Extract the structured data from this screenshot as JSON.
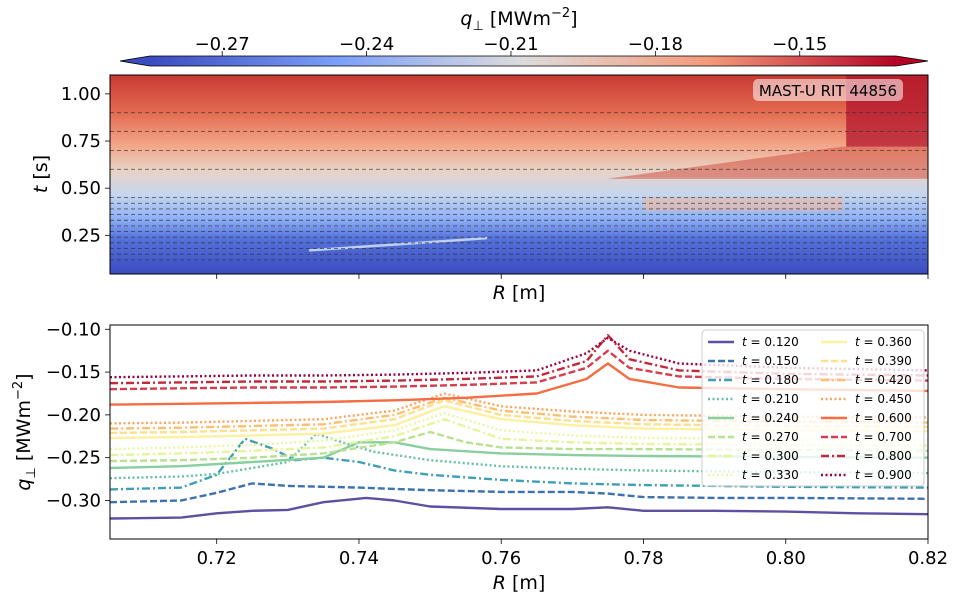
{
  "chart_data": [
    {
      "type": "heatmap",
      "colorbar": {
        "label": "q",
        "label_sub": "⊥",
        "label_units": "[MWm",
        "label_exp": "−2",
        "label_close": "]",
        "colormap": "coolwarm",
        "range": [
          -0.285,
          -0.13
        ],
        "ticks": [
          "−0.27",
          "−0.24",
          "−0.21",
          "−0.18",
          "−0.15"
        ],
        "tick_values": [
          -0.27,
          -0.24,
          -0.21,
          -0.18,
          -0.15
        ],
        "extend": "both"
      },
      "xlim": [
        0.705,
        0.82
      ],
      "ylim": [
        0.045,
        1.1
      ],
      "xlabel": "R",
      "xlabel_units": "[m]",
      "ylabel": "t",
      "ylabel_units": "[s]",
      "yticks": [
        "0.25",
        "0.50",
        "0.75",
        "1.00"
      ],
      "ytick_values": [
        0.25,
        0.5,
        0.75,
        1.0
      ],
      "xtick_values": [
        0.72,
        0.74,
        0.76,
        0.78,
        0.8,
        0.82
      ],
      "annotation": "MAST-U RIT 44856",
      "dashed_time_lines": [
        0.12,
        0.15,
        0.18,
        0.21,
        0.24,
        0.27,
        0.3,
        0.33,
        0.36,
        0.39,
        0.42,
        0.45,
        0.6,
        0.7,
        0.8,
        0.9
      ]
    },
    {
      "type": "line",
      "xlim": [
        0.705,
        0.82
      ],
      "ylim": [
        -0.345,
        -0.095
      ],
      "xlabel": "R",
      "xlabel_units": "[m]",
      "ylabel": "q",
      "ylabel_sub": "⊥",
      "ylabel_units": "[MWm",
      "ylabel_exp": "−2",
      "ylabel_close": "]",
      "xticks": [
        "0.72",
        "0.74",
        "0.76",
        "0.78",
        "0.80",
        "0.82"
      ],
      "xtick_values": [
        0.72,
        0.74,
        0.76,
        0.78,
        0.8,
        0.82
      ],
      "yticks": [
        "−0.30",
        "−0.25",
        "−0.20",
        "−0.15",
        "−0.10"
      ],
      "ytick_values": [
        -0.3,
        -0.25,
        -0.2,
        -0.15,
        -0.1
      ],
      "legend_location": "top-right",
      "legend_columns": 2,
      "series": [
        {
          "name": "0.120",
          "color": "#5e4fa2",
          "dash": "solid",
          "points": [
            [
              0.705,
              -0.321
            ],
            [
              0.715,
              -0.32
            ],
            [
              0.72,
              -0.315
            ],
            [
              0.725,
              -0.312
            ],
            [
              0.73,
              -0.311
            ],
            [
              0.735,
              -0.302
            ],
            [
              0.741,
              -0.297
            ],
            [
              0.745,
              -0.3
            ],
            [
              0.75,
              -0.307
            ],
            [
              0.76,
              -0.31
            ],
            [
              0.77,
              -0.31
            ],
            [
              0.775,
              -0.308
            ],
            [
              0.78,
              -0.312
            ],
            [
              0.79,
              -0.312
            ],
            [
              0.8,
              -0.313
            ],
            [
              0.81,
              -0.315
            ],
            [
              0.82,
              -0.316
            ]
          ]
        },
        {
          "name": "0.150",
          "color": "#3d72b2",
          "dash": "dashed",
          "points": [
            [
              0.705,
              -0.302
            ],
            [
              0.715,
              -0.3
            ],
            [
              0.72,
              -0.291
            ],
            [
              0.725,
              -0.28
            ],
            [
              0.73,
              -0.283
            ],
            [
              0.74,
              -0.285
            ],
            [
              0.75,
              -0.288
            ],
            [
              0.76,
              -0.29
            ],
            [
              0.77,
              -0.29
            ],
            [
              0.775,
              -0.292
            ],
            [
              0.78,
              -0.296
            ],
            [
              0.79,
              -0.297
            ],
            [
              0.8,
              -0.297
            ],
            [
              0.82,
              -0.298
            ]
          ]
        },
        {
          "name": "0.180",
          "color": "#3f9fb6",
          "dash": "dashdot",
          "points": [
            [
              0.705,
              -0.287
            ],
            [
              0.715,
              -0.285
            ],
            [
              0.72,
              -0.27
            ],
            [
              0.724,
              -0.228
            ],
            [
              0.728,
              -0.24
            ],
            [
              0.731,
              -0.253
            ],
            [
              0.735,
              -0.25
            ],
            [
              0.74,
              -0.255
            ],
            [
              0.745,
              -0.265
            ],
            [
              0.75,
              -0.27
            ],
            [
              0.76,
              -0.276
            ],
            [
              0.77,
              -0.28
            ],
            [
              0.78,
              -0.282
            ],
            [
              0.79,
              -0.283
            ],
            [
              0.8,
              -0.284
            ],
            [
              0.82,
              -0.285
            ]
          ]
        },
        {
          "name": "0.210",
          "color": "#66c2a5",
          "dash": "dotted",
          "points": [
            [
              0.705,
              -0.274
            ],
            [
              0.715,
              -0.272
            ],
            [
              0.72,
              -0.269
            ],
            [
              0.725,
              -0.262
            ],
            [
              0.73,
              -0.255
            ],
            [
              0.734,
              -0.222
            ],
            [
              0.738,
              -0.233
            ],
            [
              0.742,
              -0.243
            ],
            [
              0.75,
              -0.253
            ],
            [
              0.76,
              -0.26
            ],
            [
              0.77,
              -0.263
            ],
            [
              0.78,
              -0.265
            ],
            [
              0.8,
              -0.267
            ],
            [
              0.82,
              -0.268
            ]
          ]
        },
        {
          "name": "0.240",
          "color": "#88cf9e",
          "dash": "solid",
          "points": [
            [
              0.705,
              -0.262
            ],
            [
              0.715,
              -0.26
            ],
            [
              0.725,
              -0.255
            ],
            [
              0.735,
              -0.25
            ],
            [
              0.74,
              -0.232
            ],
            [
              0.745,
              -0.232
            ],
            [
              0.75,
              -0.24
            ],
            [
              0.76,
              -0.245
            ],
            [
              0.77,
              -0.247
            ],
            [
              0.78,
              -0.248
            ],
            [
              0.8,
              -0.249
            ],
            [
              0.82,
              -0.25
            ]
          ]
        },
        {
          "name": "0.270",
          "color": "#b8e28f",
          "dash": "dashed",
          "points": [
            [
              0.705,
              -0.254
            ],
            [
              0.715,
              -0.253
            ],
            [
              0.725,
              -0.25
            ],
            [
              0.735,
              -0.245
            ],
            [
              0.745,
              -0.232
            ],
            [
              0.75,
              -0.22
            ],
            [
              0.755,
              -0.232
            ],
            [
              0.76,
              -0.238
            ],
            [
              0.77,
              -0.24
            ],
            [
              0.78,
              -0.24
            ],
            [
              0.8,
              -0.241
            ],
            [
              0.82,
              -0.242
            ]
          ]
        },
        {
          "name": "0.300",
          "color": "#e6f598",
          "dash": "dashdot",
          "points": [
            [
              0.705,
              -0.247
            ],
            [
              0.715,
              -0.245
            ],
            [
              0.725,
              -0.242
            ],
            [
              0.735,
              -0.238
            ],
            [
              0.745,
              -0.225
            ],
            [
              0.752,
              -0.205
            ],
            [
              0.76,
              -0.228
            ],
            [
              0.77,
              -0.232
            ],
            [
              0.78,
              -0.234
            ],
            [
              0.8,
              -0.235
            ],
            [
              0.82,
              -0.236
            ]
          ]
        },
        {
          "name": "0.330",
          "color": "#eef6a3",
          "dash": "dotted",
          "points": [
            [
              0.705,
              -0.24
            ],
            [
              0.715,
              -0.238
            ],
            [
              0.725,
              -0.235
            ],
            [
              0.735,
              -0.23
            ],
            [
              0.745,
              -0.218
            ],
            [
              0.752,
              -0.198
            ],
            [
              0.76,
              -0.218
            ],
            [
              0.77,
              -0.224
            ],
            [
              0.78,
              -0.227
            ],
            [
              0.8,
              -0.228
            ],
            [
              0.82,
              -0.229
            ]
          ]
        },
        {
          "name": "0.360",
          "color": "#fdf0a0",
          "dash": "solid",
          "points": [
            [
              0.705,
              -0.227
            ],
            [
              0.715,
              -0.226
            ],
            [
              0.725,
              -0.224
            ],
            [
              0.735,
              -0.222
            ],
            [
              0.745,
              -0.212
            ],
            [
              0.752,
              -0.19
            ],
            [
              0.76,
              -0.205
            ],
            [
              0.77,
              -0.212
            ],
            [
              0.78,
              -0.216
            ],
            [
              0.8,
              -0.218
            ],
            [
              0.82,
              -0.219
            ]
          ]
        },
        {
          "name": "0.390",
          "color": "#fedf8b",
          "dash": "dashed",
          "points": [
            [
              0.705,
              -0.221
            ],
            [
              0.715,
              -0.22
            ],
            [
              0.725,
              -0.218
            ],
            [
              0.735,
              -0.216
            ],
            [
              0.745,
              -0.205
            ],
            [
              0.752,
              -0.183
            ],
            [
              0.76,
              -0.2
            ],
            [
              0.77,
              -0.207
            ],
            [
              0.78,
              -0.211
            ],
            [
              0.8,
              -0.213
            ],
            [
              0.82,
              -0.214
            ]
          ]
        },
        {
          "name": "0.420",
          "color": "#fdbe6f",
          "dash": "dashdot",
          "points": [
            [
              0.705,
              -0.216
            ],
            [
              0.715,
              -0.215
            ],
            [
              0.725,
              -0.213
            ],
            [
              0.735,
              -0.211
            ],
            [
              0.745,
              -0.2
            ],
            [
              0.752,
              -0.18
            ],
            [
              0.76,
              -0.195
            ],
            [
              0.77,
              -0.202
            ],
            [
              0.78,
              -0.206
            ],
            [
              0.8,
              -0.208
            ],
            [
              0.82,
              -0.209
            ]
          ]
        },
        {
          "name": "0.450",
          "color": "#fca55d",
          "dash": "dotted",
          "points": [
            [
              0.705,
              -0.21
            ],
            [
              0.715,
              -0.209
            ],
            [
              0.725,
              -0.207
            ],
            [
              0.735,
              -0.205
            ],
            [
              0.745,
              -0.195
            ],
            [
              0.752,
              -0.175
            ],
            [
              0.76,
              -0.19
            ],
            [
              0.77,
              -0.196
            ],
            [
              0.78,
              -0.2
            ],
            [
              0.8,
              -0.202
            ],
            [
              0.82,
              -0.203
            ]
          ]
        },
        {
          "name": "0.600",
          "color": "#f46d43",
          "dash": "solid",
          "points": [
            [
              0.705,
              -0.188
            ],
            [
              0.715,
              -0.187
            ],
            [
              0.725,
              -0.186
            ],
            [
              0.735,
              -0.185
            ],
            [
              0.745,
              -0.183
            ],
            [
              0.755,
              -0.18
            ],
            [
              0.765,
              -0.175
            ],
            [
              0.772,
              -0.158
            ],
            [
              0.775,
              -0.14
            ],
            [
              0.778,
              -0.158
            ],
            [
              0.785,
              -0.168
            ],
            [
              0.8,
              -0.17
            ],
            [
              0.82,
              -0.172
            ]
          ]
        },
        {
          "name": "0.700",
          "color": "#d53e4f",
          "dash": "dashed",
          "points": [
            [
              0.705,
              -0.17
            ],
            [
              0.715,
              -0.169
            ],
            [
              0.725,
              -0.168
            ],
            [
              0.735,
              -0.168
            ],
            [
              0.745,
              -0.167
            ],
            [
              0.755,
              -0.165
            ],
            [
              0.765,
              -0.162
            ],
            [
              0.772,
              -0.145
            ],
            [
              0.775,
              -0.125
            ],
            [
              0.778,
              -0.145
            ],
            [
              0.785,
              -0.155
            ],
            [
              0.8,
              -0.158
            ],
            [
              0.82,
              -0.16
            ]
          ]
        },
        {
          "name": "0.800",
          "color": "#c0283b",
          "dash": "dashdot",
          "points": [
            [
              0.705,
              -0.163
            ],
            [
              0.715,
              -0.162
            ],
            [
              0.725,
              -0.161
            ],
            [
              0.735,
              -0.161
            ],
            [
              0.745,
              -0.16
            ],
            [
              0.755,
              -0.158
            ],
            [
              0.765,
              -0.155
            ],
            [
              0.772,
              -0.137
            ],
            [
              0.775,
              -0.107
            ],
            [
              0.778,
              -0.135
            ],
            [
              0.785,
              -0.148
            ],
            [
              0.8,
              -0.152
            ],
            [
              0.82,
              -0.154
            ]
          ]
        },
        {
          "name": "0.900",
          "color": "#9e0142",
          "dash": "dotted",
          "points": [
            [
              0.705,
              -0.156
            ],
            [
              0.715,
              -0.155
            ],
            [
              0.725,
              -0.154
            ],
            [
              0.735,
              -0.154
            ],
            [
              0.745,
              -0.153
            ],
            [
              0.755,
              -0.151
            ],
            [
              0.765,
              -0.148
            ],
            [
              0.772,
              -0.128
            ],
            [
              0.775,
              -0.11
            ],
            [
              0.778,
              -0.125
            ],
            [
              0.785,
              -0.14
            ],
            [
              0.8,
              -0.145
            ],
            [
              0.82,
              -0.148
            ]
          ]
        }
      ],
      "legend_prefix": "t = "
    }
  ]
}
